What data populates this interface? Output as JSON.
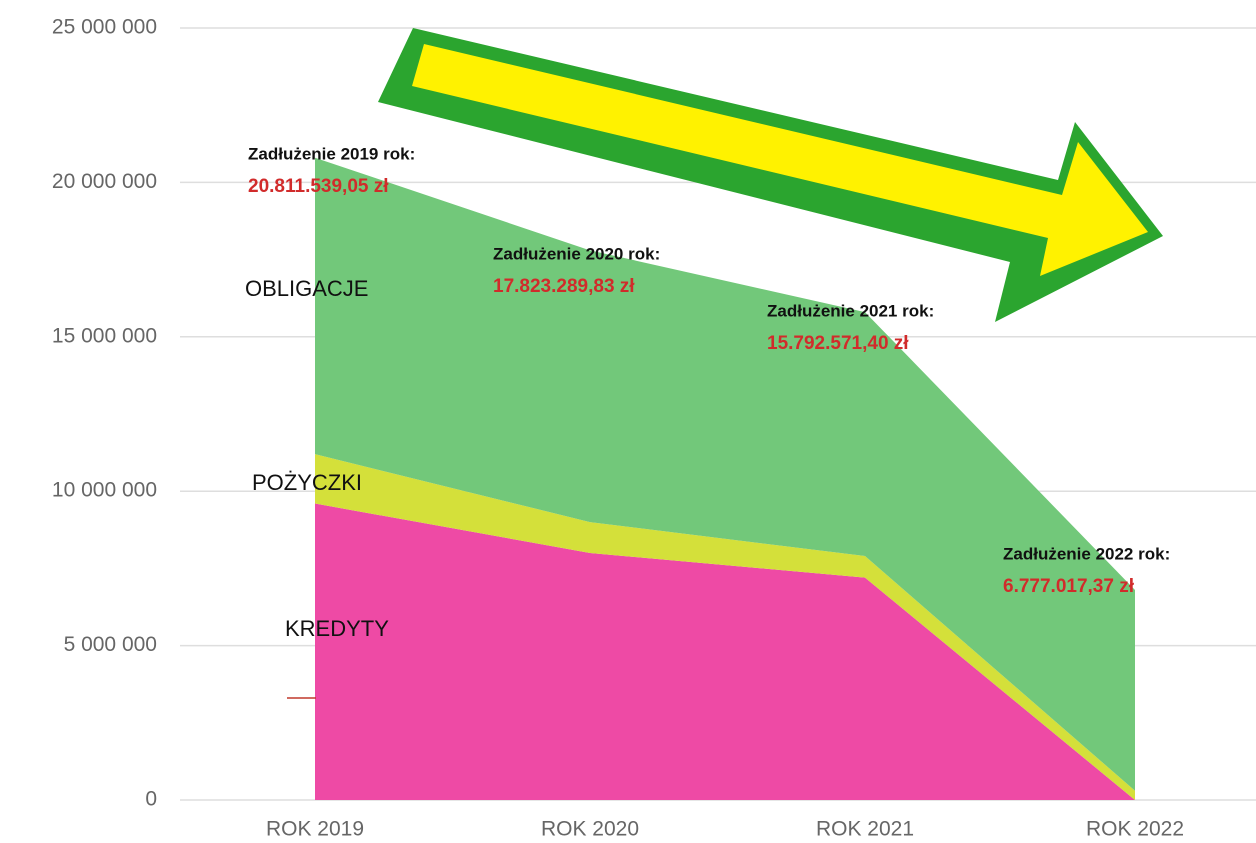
{
  "chart_data": {
    "type": "stacked_area",
    "categories": [
      "ROK 2019",
      "ROK 2020",
      "ROK 2021",
      "ROK 2022"
    ],
    "series": [
      {
        "name": "KREDYTY",
        "color": "#ee4aa5",
        "values": [
          9600000,
          8000000,
          7200000,
          0
        ]
      },
      {
        "name": "POŻYCZKI",
        "color": "#d4e03a",
        "values": [
          1600000,
          1000000,
          700000,
          300000
        ]
      },
      {
        "name": "OBLIGACJE",
        "color": "#72c87a",
        "values": [
          9600000,
          8800000,
          7900000,
          6500000
        ]
      }
    ],
    "ylim": [
      0,
      25000000
    ],
    "yticks": [
      0,
      {
        "value": 5000000,
        "label": "5 000 000"
      },
      {
        "value": 10000000,
        "label": "10 000 000"
      },
      {
        "value": 15000000,
        "label": "15 000 000"
      },
      {
        "value": 20000000,
        "label": "20 000 000"
      },
      {
        "value": 25000000,
        "label": "25 000 000"
      }
    ],
    "grid": true,
    "annotations": [
      {
        "title": "Zadłużenie 2019 rok:",
        "value": "20.811.539,05 zł"
      },
      {
        "title": "Zadłużenie 2020 rok:",
        "value": "17.823.289,83 zł"
      },
      {
        "title": "Zadłużenie 2021 rok:",
        "value": "15.792.571,40 zł"
      },
      {
        "title": "Zadłużenie 2022 rok:",
        "value": "6.777.017,37 zł"
      }
    ]
  }
}
